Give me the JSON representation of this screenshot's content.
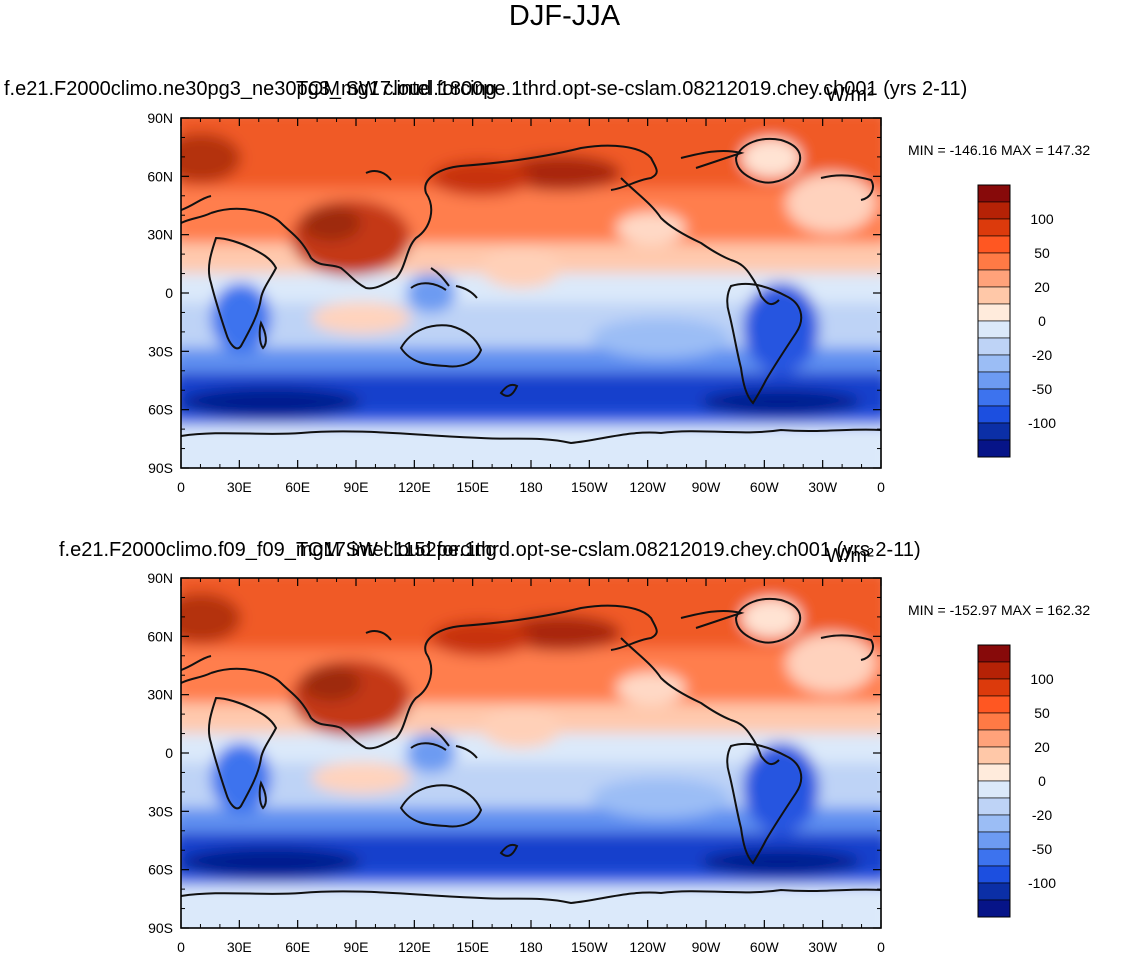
{
  "title": "DJF-JJA",
  "x_tick_labels": [
    "0",
    "30E",
    "60E",
    "90E",
    "120E",
    "150E",
    "180",
    "150W",
    "120W",
    "90W",
    "60W",
    "30W",
    "0"
  ],
  "y_tick_labels": [
    "90N",
    "60N",
    "30N",
    "0",
    "30S",
    "60S",
    "90S"
  ],
  "colorbar": {
    "labels": [
      "100",
      "50",
      "20",
      "0",
      "-20",
      "-50",
      "-100"
    ],
    "colors": [
      "#870a0a",
      "#b52206",
      "#dc3a0c",
      "#ff5722",
      "#ff7a45",
      "#ffa27a",
      "#ffc8a8",
      "#ffebdc",
      "#dbe9fa",
      "#bed3f6",
      "#9bbdf5",
      "#6d9bf2",
      "#3d73ee",
      "#1c4fe0",
      "#0b2fa6",
      "#061488"
    ]
  },
  "panels": [
    {
      "model_case": "f.e21.F2000climo.ne30pg3_ne30pg3_mg17.intel.1800pe.1thrd.opt-se-cslam.08212019.chey.ch001 (yrs 2-11)",
      "variable": "TOM SW cloud forcing",
      "units": "W/m²",
      "min_max": "MIN = -146.16 MAX = 147.32"
    },
    {
      "model_case": "f.e21.F2000climo.f09_f09_mg17.intel.1152pe.1thrd.opt-se-cslam.08212019.chey.ch001 (yrs 2-11)",
      "variable": "TOM SW cloud forcing",
      "units": "W/m²",
      "min_max": "MIN = -152.97 MAX = 162.32"
    }
  ]
}
